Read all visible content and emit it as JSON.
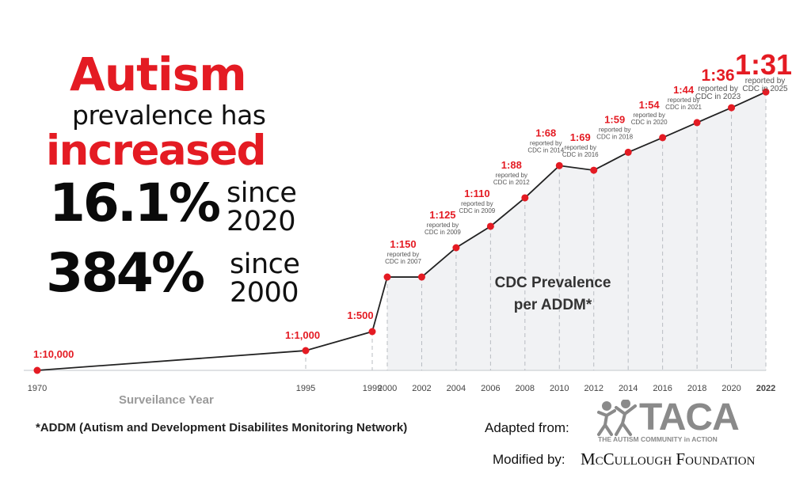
{
  "headline": {
    "line1": "Autism",
    "line2": "prevalence has",
    "line3": "increased",
    "stat1_value": "16.1%",
    "stat1_since": "since",
    "stat1_year": "2020",
    "stat2_value": "384%",
    "stat2_since": "since",
    "stat2_year": "2000"
  },
  "colors": {
    "accent": "#e41b23",
    "line": "#222222",
    "area": "#f1f2f4",
    "logo_grey": "#8a8a8a"
  },
  "chart_data": {
    "type": "line",
    "title": "CDC Prevalence per ADDM*",
    "xlabel": "Surveilance Year",
    "ylabel": "",
    "x_ticks": [
      "1970",
      "1995",
      "1999",
      "2000",
      "2002",
      "2004",
      "2006",
      "2008",
      "2010",
      "2012",
      "2014",
      "2016",
      "2018",
      "2020",
      "2022"
    ],
    "points": [
      {
        "year": 1970,
        "ratio": 10000,
        "label": "1:10,000",
        "note1": "",
        "note2": ""
      },
      {
        "year": 1995,
        "ratio": 1000,
        "label": "1:1,000",
        "note1": "",
        "note2": ""
      },
      {
        "year": 1999,
        "ratio": 500,
        "label": "1:500",
        "note1": "",
        "note2": ""
      },
      {
        "year": 2000,
        "ratio": 150,
        "label": "1:150",
        "note1": "reported by",
        "note2": "CDC in 2007"
      },
      {
        "year": 2002,
        "ratio": 150,
        "label": "",
        "note1": "",
        "note2": ""
      },
      {
        "year": 2004,
        "ratio": 125,
        "label": "1:125",
        "note1": "reported by",
        "note2": "CDC in 2009"
      },
      {
        "year": 2006,
        "ratio": 110,
        "label": "1:110",
        "note1": "reported by",
        "note2": "CDC in 2009"
      },
      {
        "year": 2008,
        "ratio": 88,
        "label": "1:88",
        "note1": "reported by",
        "note2": "CDC in 2012"
      },
      {
        "year": 2010,
        "ratio": 68,
        "label": "1:68",
        "note1": "reported by",
        "note2": "CDC in 2014"
      },
      {
        "year": 2012,
        "ratio": 69,
        "label": "1:69",
        "note1": "reported by",
        "note2": "CDC in 2016"
      },
      {
        "year": 2014,
        "ratio": 59,
        "label": "1:59",
        "note1": "reported by",
        "note2": "CDC in 2018"
      },
      {
        "year": 2016,
        "ratio": 54,
        "label": "1:54",
        "note1": "reported by",
        "note2": "CDC in 2020"
      },
      {
        "year": 2018,
        "ratio": 44,
        "label": "1:44",
        "note1": "reported by",
        "note2": "CDC in 2021"
      },
      {
        "year": 2020,
        "ratio": 36,
        "label": "1:36",
        "note1": "reported by",
        "note2": "CDC in 2023"
      },
      {
        "year": 2022,
        "ratio": 31,
        "label": "1:31",
        "note1": "reported by",
        "note2": "CDC in 2025"
      }
    ],
    "grid": false,
    "legend": "none"
  },
  "chart_title_line1": "CDC Prevalence",
  "chart_title_line2": "per ADDM*",
  "footer": {
    "footnote": "*ADDM (Autism and Development Disabilites Monitoring Network)",
    "adapted_from": "Adapted from:",
    "logo_name": "TACA",
    "logo_tagline": "THE AUTISM COMMUNITY in ACTION",
    "modified_by": "Modified by:",
    "modifier": "McCullough Foundation"
  }
}
